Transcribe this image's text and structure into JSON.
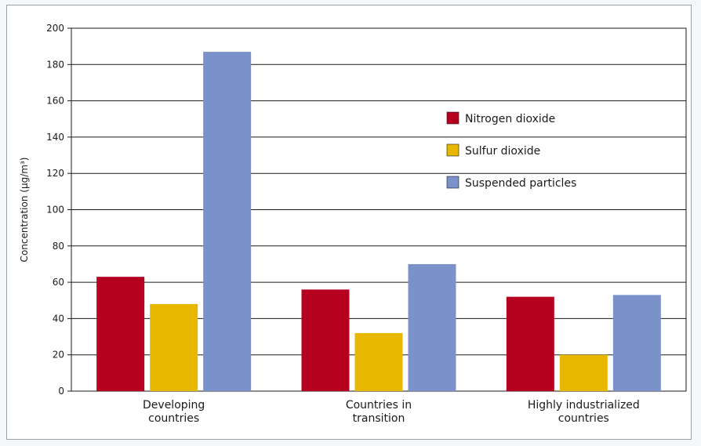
{
  "chart_data": {
    "type": "bar",
    "categories": [
      [
        "Developing",
        "countries"
      ],
      [
        "Countries in",
        "transition"
      ],
      [
        "Highly industrialized",
        "countries"
      ]
    ],
    "series": [
      {
        "name": "Nitrogen dioxide",
        "color": "#b5001f",
        "values": [
          63,
          56,
          52
        ]
      },
      {
        "name": "Sulfur dioxide",
        "color": "#e8b800",
        "values": [
          48,
          32,
          20
        ]
      },
      {
        "name": "Suspended particles",
        "color": "#7b91c9",
        "values": [
          187,
          70,
          53
        ]
      }
    ],
    "ylabel": "Concentration (µg/m³)",
    "ylim": [
      0,
      200
    ],
    "yticks": [
      0,
      20,
      40,
      60,
      80,
      100,
      120,
      140,
      160,
      180,
      200
    ],
    "grid": true,
    "legend_position": "right-upper"
  }
}
